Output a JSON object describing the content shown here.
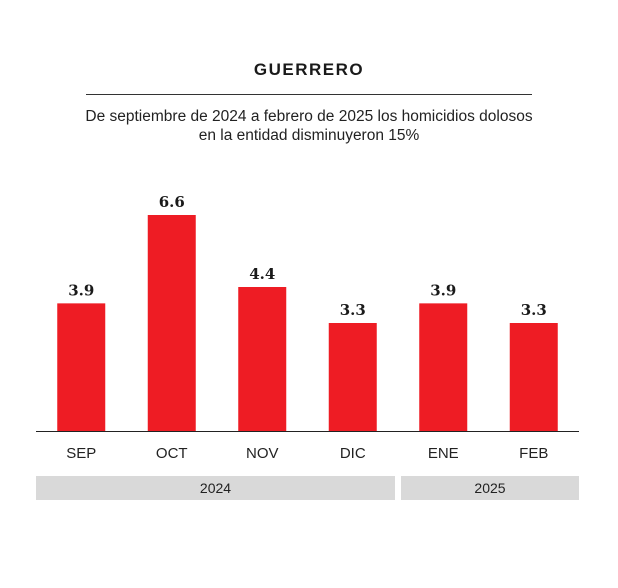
{
  "header": {
    "title": "GUERRERO",
    "subtitle_lines": [
      "De septiembre de 2024 a febrero de 2025 los homicidios dolosos",
      "en la entidad disminuyeron 15%"
    ]
  },
  "colors": {
    "bar": "#ee1c24",
    "year_band": "#d9d9d9",
    "axis": "#222222"
  },
  "chart_data": {
    "type": "bar",
    "title": "GUERRERO",
    "subtitle": "De septiembre de 2024 a febrero de 2025 los homicidios dolosos en la entidad disminuyeron 15%",
    "categories": [
      "SEP",
      "OCT",
      "NOV",
      "DIC",
      "ENE",
      "FEB"
    ],
    "values": [
      3.9,
      6.6,
      4.4,
      3.3,
      3.9,
      3.3
    ],
    "value_labels": [
      "3.9",
      "6.6",
      "4.4",
      "3.3",
      "3.9",
      "3.3"
    ],
    "groups": [
      {
        "label": "2024",
        "categories": [
          "SEP",
          "OCT",
          "NOV",
          "DIC"
        ]
      },
      {
        "label": "2025",
        "categories": [
          "ENE",
          "FEB"
        ]
      }
    ],
    "xlabel": "",
    "ylabel": "",
    "ylim": [
      0,
      6.6
    ],
    "grid": false,
    "legend": "none"
  }
}
